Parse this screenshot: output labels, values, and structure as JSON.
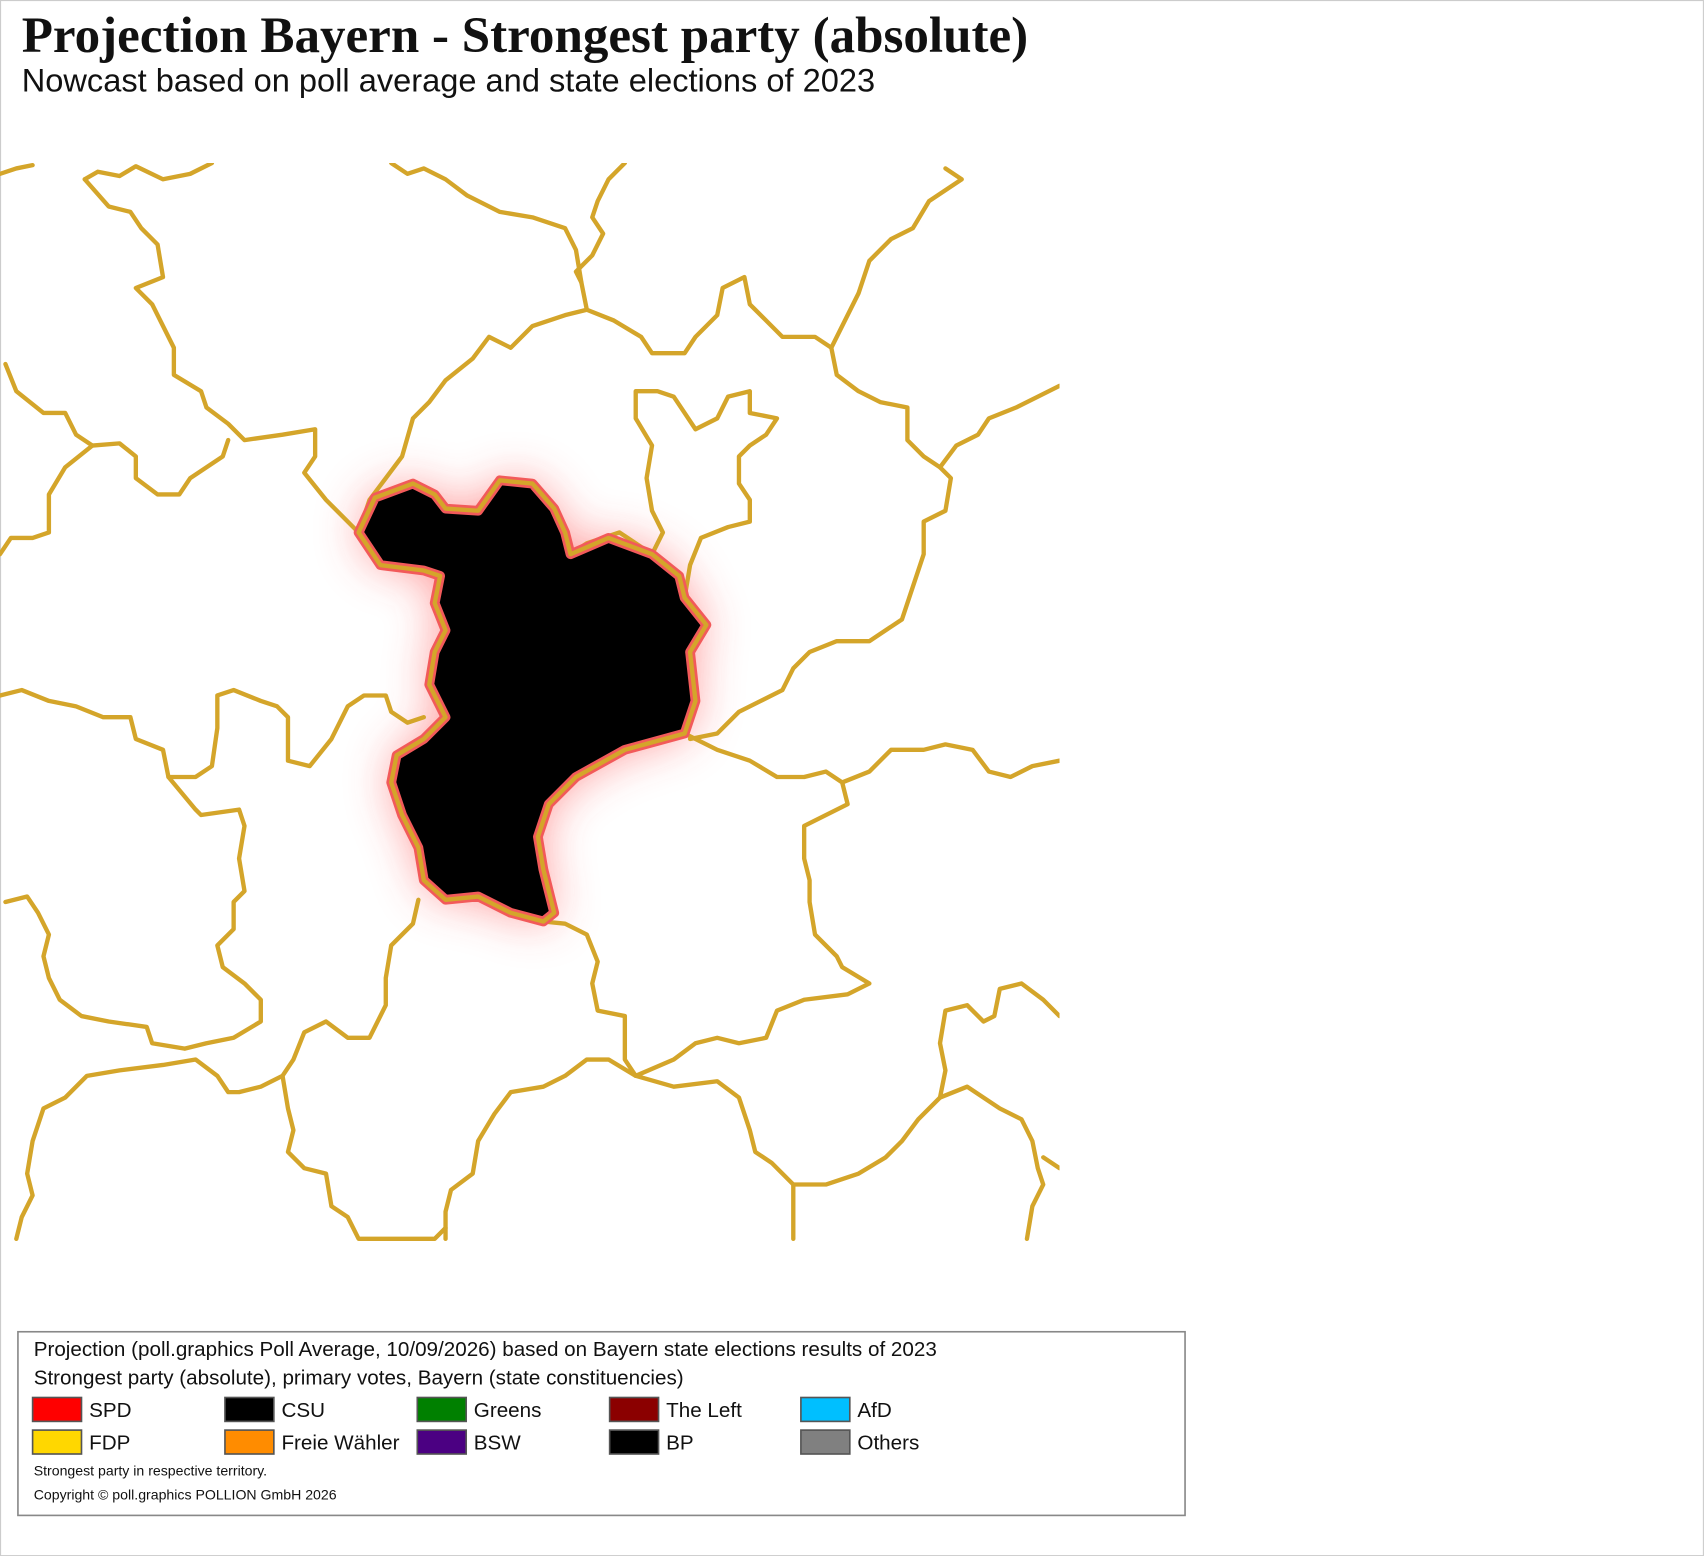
{
  "header": {
    "title": "Projection Bayern - Strongest party (absolute)",
    "subtitle": "Nowcast based on poll average and state elections of 2023"
  },
  "legend": {
    "title": "Projection (poll.graphics Poll Average, 10/09/2026) based on Bayern state elections results of 2023",
    "subtitle": "Strongest party (absolute), primary votes, Bayern (state constituencies)",
    "items": [
      {
        "name": "SPD",
        "color": "#ff0000"
      },
      {
        "name": "CSU",
        "color": "#000000"
      },
      {
        "name": "Greens",
        "color": "#008000"
      },
      {
        "name": "The Left",
        "color": "#8b0000"
      },
      {
        "name": "AfD",
        "color": "#00bfff"
      },
      {
        "name": "FDP",
        "color": "#ffd700"
      },
      {
        "name": "Freie Wähler",
        "color": "#ff8c00"
      },
      {
        "name": "BSW",
        "color": "#4b0082"
      },
      {
        "name": "BP",
        "color": "#000000"
      },
      {
        "name": "Others",
        "color": "#808080"
      }
    ],
    "notes": [
      "Strongest party in respective territory.",
      "Copyright © poll.graphics POLLION GmbH 2026"
    ]
  }
}
